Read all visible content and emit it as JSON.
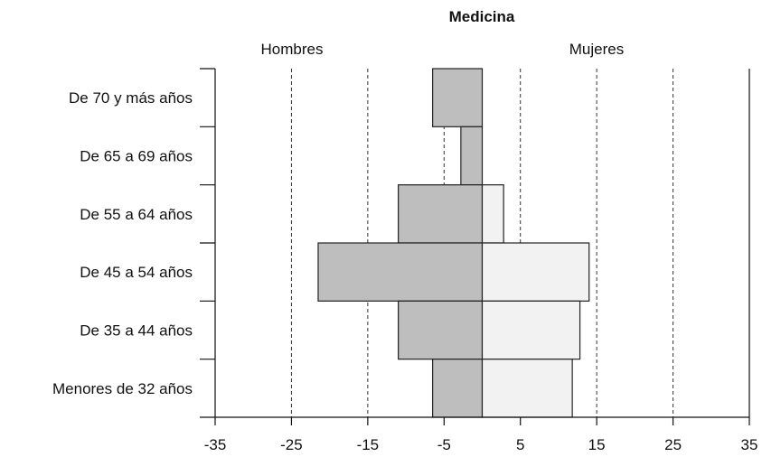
{
  "chart_data": {
    "type": "bar",
    "title": "Medicina",
    "left_label": "Hombres",
    "right_label": "Mujeres",
    "categories": [
      "De 70 y más años",
      "De 65 a 69 años",
      "De 55 a 64 años",
      "De 45 a 54 años",
      "De 35 a 44 años",
      "Menores de 32 años"
    ],
    "series": [
      {
        "name": "Hombres",
        "values": [
          -6.5,
          -2.8,
          -11,
          -21.5,
          -11,
          -6.5
        ],
        "color": "#bebebe"
      },
      {
        "name": "Mujeres",
        "values": [
          0,
          0,
          2.8,
          14,
          12.8,
          11.8
        ],
        "color": "#f2f2f2"
      }
    ],
    "xlim": [
      -35,
      35
    ],
    "xticks": [
      -35,
      -25,
      -15,
      -5,
      5,
      15,
      25,
      35
    ],
    "gridlines": [
      -25,
      -15,
      -5,
      5,
      15,
      25
    ],
    "grid": "dashed vertical"
  }
}
